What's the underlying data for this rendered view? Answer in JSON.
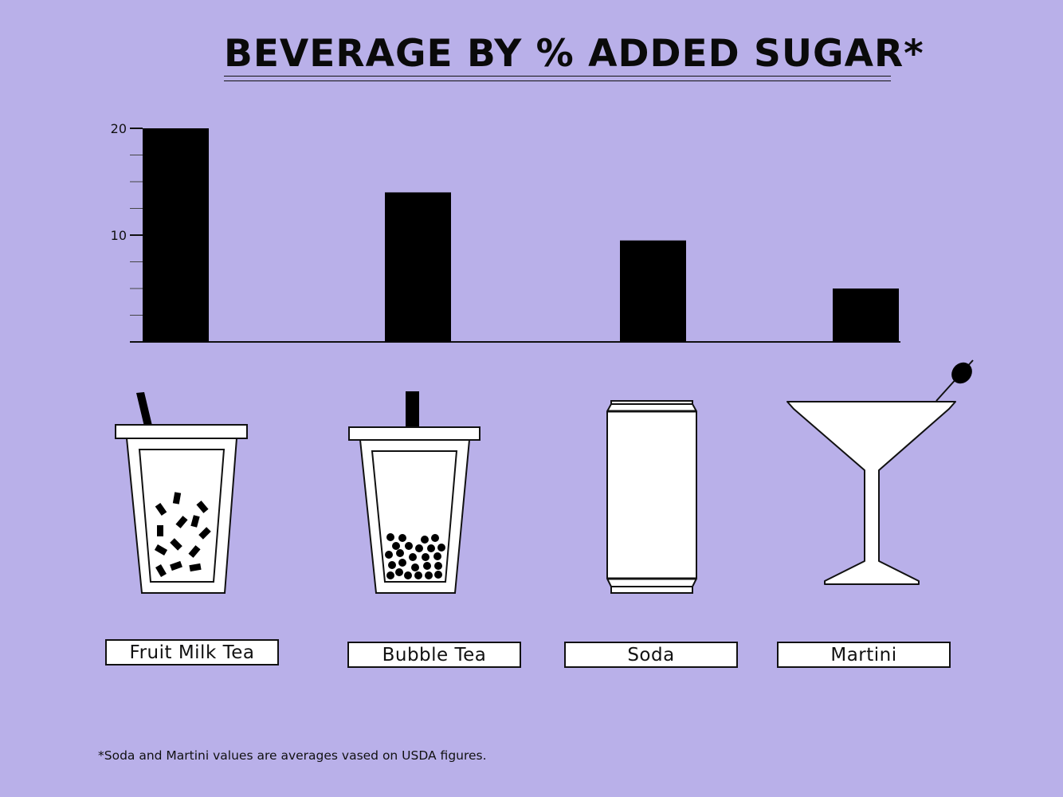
{
  "title": "BEVERAGE BY % ADDED SUGAR*",
  "footnote": "*Soda and Martini values are averages vased on USDA figures.",
  "colors": {
    "background": "#b9b0e9",
    "bar": "#000000",
    "icon_fill": "#ffffff",
    "ink": "#111111"
  },
  "icons": [
    "fruit-milk-tea-cup-icon",
    "bubble-tea-cup-icon",
    "soda-can-icon",
    "martini-glass-icon"
  ],
  "chart_data": {
    "type": "bar",
    "title": "BEVERAGE BY % ADDED SUGAR*",
    "categories": [
      "Fruit Milk Tea",
      "Bubble Tea",
      "Soda",
      "Martini"
    ],
    "values": [
      20,
      14,
      9.5,
      5
    ],
    "y_ticks": [
      "10",
      "20"
    ],
    "ylim": [
      0,
      20
    ],
    "grid": false,
    "legend": "none"
  }
}
